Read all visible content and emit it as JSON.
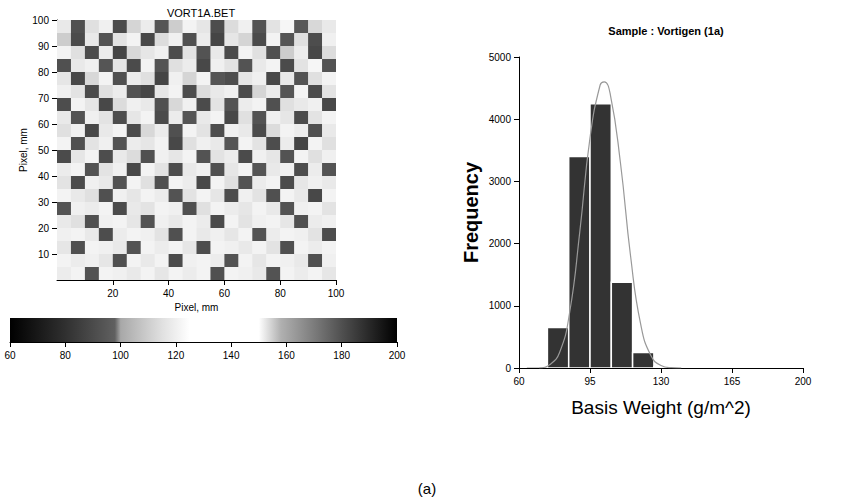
{
  "chart_data": [
    {
      "type": "heatmap",
      "title": "VORT1A.BET",
      "x_label": "Pixel, mm",
      "y_label": "Pixel, mm",
      "xlim": [
        0,
        100
      ],
      "xticks": [
        20,
        40,
        60,
        80,
        100
      ],
      "ylim": [
        0,
        100
      ],
      "yticks": [
        10,
        20,
        30,
        40,
        50,
        60,
        70,
        80,
        90,
        100
      ],
      "cells": [
        [
          118,
          92,
          115,
          120,
          90,
          112,
          119,
          94,
          110,
          121,
          117,
          91,
          114,
          120,
          93,
          116,
          122,
          95,
          113,
          118
        ],
        [
          110,
          90,
          118,
          93,
          116,
          121,
          89,
          114,
          120,
          92,
          119,
          88,
          117,
          112,
          90,
          121,
          94,
          115,
          91,
          120
        ],
        [
          121,
          115,
          91,
          119,
          88,
          113,
          117,
          120,
          91,
          116,
          93,
          118,
          90,
          121,
          115,
          92,
          110,
          119,
          89,
          114
        ],
        [
          92,
          118,
          120,
          94,
          117,
          90,
          121,
          93,
          115,
          119,
          89,
          120,
          116,
          93,
          118,
          121,
          90,
          116,
          122,
          93
        ],
        [
          117,
          89,
          113,
          121,
          92,
          119,
          115,
          88,
          120,
          112,
          121,
          94,
          91,
          117,
          120,
          89,
          118,
          93,
          115,
          121
        ],
        [
          120,
          116,
          90,
          115,
          119,
          93,
          88,
          117,
          121,
          91,
          114,
          118,
          120,
          90,
          112,
          119,
          94,
          121,
          90,
          116
        ],
        [
          91,
          121,
          117,
          89,
          114,
          120,
          118,
          92,
          113,
          120,
          90,
          116,
          93,
          119,
          121,
          92,
          115,
          118,
          120,
          89
        ],
        [
          118,
          93,
          120,
          116,
          91,
          117,
          121,
          90,
          119,
          94,
          118,
          121,
          89,
          115,
          93,
          120,
          117,
          90,
          116,
          121
        ],
        [
          115,
          120,
          89,
          118,
          121,
          90,
          113,
          119,
          92,
          121,
          116,
          91,
          120,
          118,
          90,
          114,
          121,
          119,
          92,
          118
        ],
        [
          121,
          92,
          116,
          120,
          93,
          119,
          117,
          121,
          89,
          115,
          120,
          118,
          94,
          121,
          116,
          91,
          119,
          88,
          121,
          115
        ],
        [
          90,
          117,
          121,
          91,
          118,
          114,
          92,
          120,
          117,
          121,
          93,
          116,
          119,
          90,
          120,
          117,
          93,
          121,
          115,
          120
        ],
        [
          119,
          121,
          93,
          116,
          120,
          89,
          121,
          116,
          91,
          118,
          120,
          92,
          117,
          121,
          94,
          118,
          120,
          91,
          119,
          93
        ],
        [
          116,
          90,
          120,
          118,
          93,
          121,
          115,
          92,
          121,
          119,
          89,
          121,
          115,
          93,
          119,
          121,
          90,
          117,
          120,
          118
        ],
        [
          121,
          118,
          115,
          92,
          120,
          117,
          121,
          119,
          93,
          116,
          121,
          117,
          91,
          120,
          116,
          92,
          121,
          118,
          89,
          121
        ],
        [
          93,
          120,
          119,
          121,
          90,
          118,
          116,
          121,
          120,
          92,
          115,
          121,
          119,
          117,
          121,
          118,
          93,
          120,
          121,
          116
        ],
        [
          118,
          115,
          92,
          120,
          121,
          117,
          93,
          120,
          118,
          121,
          119,
          90,
          121,
          116,
          120,
          121,
          117,
          92,
          119,
          120
        ],
        [
          120,
          121,
          118,
          91,
          119,
          121,
          120,
          116,
          92,
          121,
          118,
          120,
          117,
          121,
          93,
          119,
          121,
          120,
          116,
          91
        ],
        [
          117,
          92,
          121,
          120,
          118,
          93,
          121,
          119,
          121,
          117,
          91,
          121,
          120,
          118,
          121,
          116,
          92,
          121,
          119,
          121
        ],
        [
          121,
          119,
          120,
          117,
          92,
          121,
          118,
          121,
          90,
          120,
          121,
          119,
          93,
          121,
          117,
          121,
          120,
          118,
          92,
          120
        ],
        [
          119,
          121,
          93,
          121,
          120,
          118,
          121,
          117,
          121,
          119,
          121,
          92,
          121,
          120,
          118,
          93,
          121,
          119,
          121,
          117
        ]
      ],
      "colorbar": {
        "range": [
          60,
          200
        ],
        "ticks": [
          60,
          80,
          100,
          120,
          140,
          160,
          180,
          200
        ]
      }
    },
    {
      "type": "histogram",
      "title": "Sample : Vortigen (1a)",
      "x_label": "Basis Weight (g/m^2)",
      "y_label": "Frequency",
      "bins": [
        63.5,
        74,
        84.5,
        95,
        105.5,
        116,
        126.5,
        137
      ],
      "values": [
        30,
        650,
        3400,
        4250,
        1380,
        250,
        20
      ],
      "color": "#333333",
      "fit": {
        "x": [
          70,
          75,
          80,
          85,
          90,
          95,
          100,
          102,
          105,
          110,
          115,
          120,
          125,
          130,
          135,
          140
        ],
        "values": [
          0,
          50,
          250,
          900,
          2200,
          3700,
          4550,
          4600,
          4400,
          3300,
          1800,
          700,
          200,
          40,
          5,
          0
        ],
        "color": "#999999"
      },
      "xlim": [
        60,
        200
      ],
      "xticks": [
        60,
        95,
        130,
        165,
        200
      ],
      "ylim": [
        0,
        5000
      ],
      "yticks": [
        0,
        1000,
        2000,
        3000,
        4000,
        5000
      ]
    }
  ],
  "caption": "(a)"
}
